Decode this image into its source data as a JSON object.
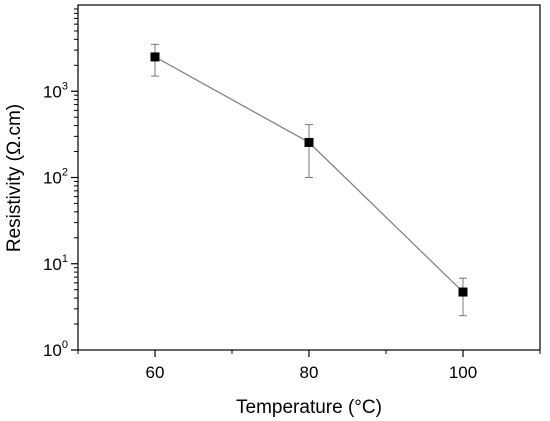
{
  "chart_data": {
    "type": "line",
    "x": [
      60,
      80,
      100
    ],
    "series": [
      {
        "values": [
          2500,
          255,
          4.7
        ],
        "error_low": [
          1500,
          100,
          2.5
        ],
        "error_high": [
          3500,
          410,
          6.8
        ]
      }
    ],
    "xlabel": "Temperature (°C)",
    "ylabel": "Resistivity (Ω.cm)",
    "xlim": [
      50,
      110
    ],
    "ylim": [
      1,
      10000
    ],
    "yscale": "log",
    "x_ticks": [
      "60",
      "80",
      "100"
    ],
    "y_tick_exponents": [
      "0",
      "1",
      "2",
      "3"
    ],
    "y_tick_base": "10",
    "grid": false,
    "legend": "none",
    "marker": "square",
    "line_color": "#7a7a7a",
    "marker_color": "#000000"
  }
}
